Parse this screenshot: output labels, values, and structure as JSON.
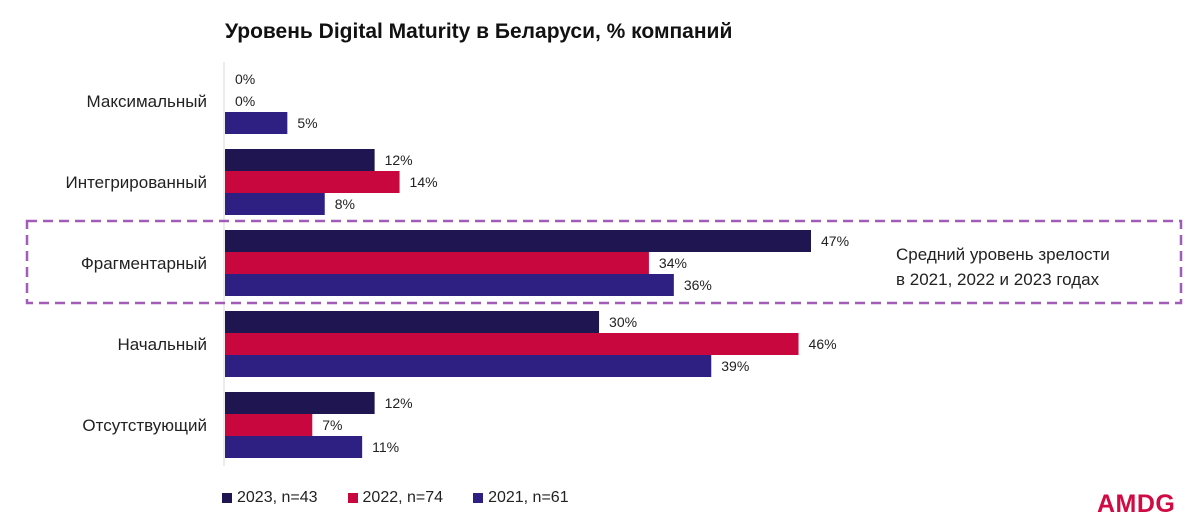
{
  "title": "Уровень Digital Maturity в Беларуси, % компаний",
  "chart_data": {
    "type": "bar",
    "orientation": "horizontal",
    "title": "Уровень Digital Maturity в Беларуси, % компаний",
    "categories": [
      "Максимальный",
      "Интегрированный",
      "Фрагментарный",
      "Начальный",
      "Отсутствующий"
    ],
    "series": [
      {
        "name": "2023, n=43",
        "color": "#1f1550",
        "values": [
          0,
          12,
          47,
          30,
          12
        ]
      },
      {
        "name": "2022, n=74",
        "color": "#c8073e",
        "values": [
          0,
          14,
          34,
          46,
          7
        ]
      },
      {
        "name": "2021, n=61",
        "color": "#2e1f83",
        "values": [
          5,
          8,
          36,
          39,
          11
        ]
      }
    ],
    "value_suffix": "%",
    "xlim": [
      0,
      47
    ],
    "grid": false,
    "legend": "bottom-left",
    "highlight_category": "Фрагментарный"
  },
  "annotation": {
    "line1": "Средний уровень зрелости",
    "line2": "в 2021, 2022 и 2023 годах"
  },
  "legend": [
    {
      "label": "2023, n=43",
      "color": "#1f1550"
    },
    {
      "label": "2022, n=74",
      "color": "#c8073e"
    },
    {
      "label": "2021, n=61",
      "color": "#2e1f83"
    }
  ],
  "logo_text": "AMDG",
  "colors": {
    "highlight_box": "#a25bb8"
  }
}
